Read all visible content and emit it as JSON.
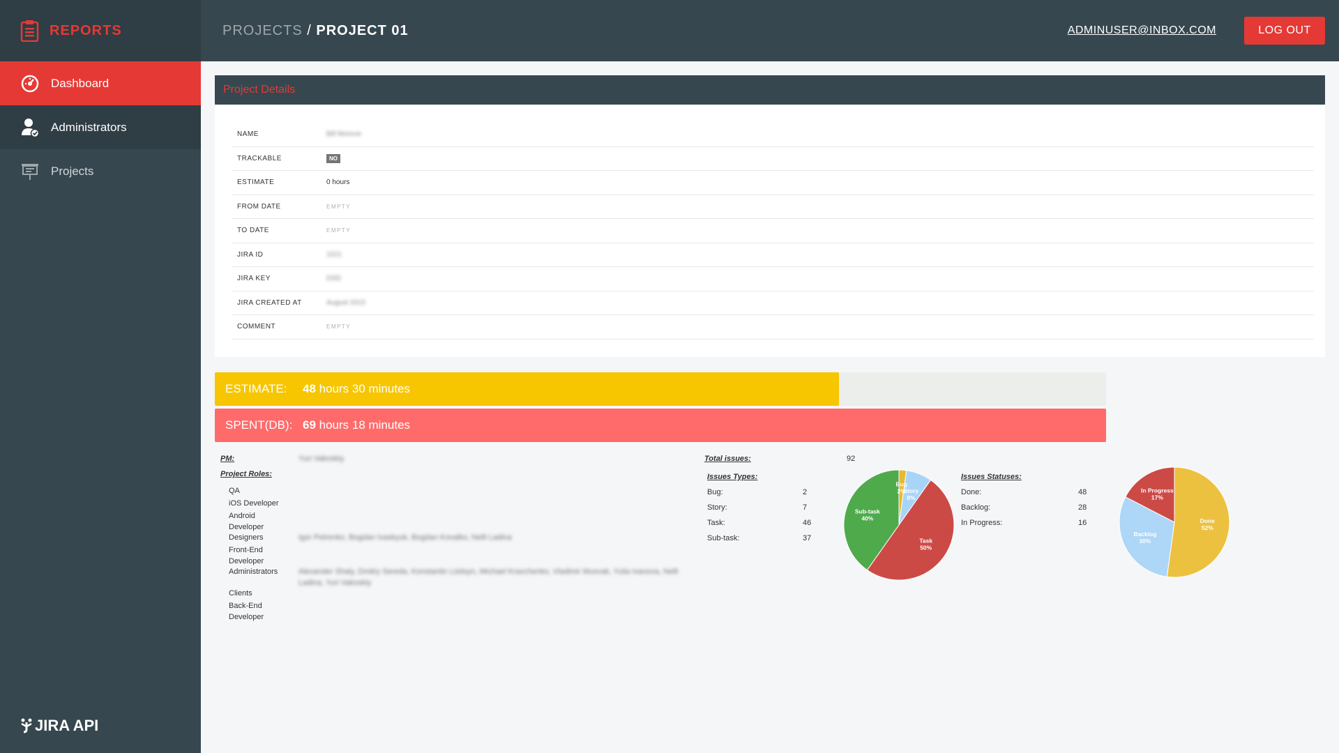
{
  "app": {
    "brand": "REPORTS",
    "footer_logo": "JIRA API"
  },
  "sidebar": {
    "items": [
      {
        "label": "Dashboard",
        "icon": "dashboard-icon"
      },
      {
        "label": "Administrators",
        "icon": "admin-user-icon"
      },
      {
        "label": "Projects",
        "icon": "projects-board-icon"
      }
    ]
  },
  "header": {
    "breadcrumb_parent": "PROJECTS",
    "breadcrumb_sep": " / ",
    "breadcrumb_current": "PROJECT 01",
    "user_email": "ADMINUSER@INBOX.COM",
    "logout_label": "LOG OUT"
  },
  "details": {
    "title": "Project Details",
    "rows": [
      {
        "label": "NAME",
        "value": "Bill Monroe",
        "blurred": true
      },
      {
        "label": "TRACKABLE",
        "value": "NO",
        "badge": true
      },
      {
        "label": "ESTIMATE",
        "value": "0 hours"
      },
      {
        "label": "FROM DATE",
        "value": "EMPTY",
        "empty": true
      },
      {
        "label": "TO DATE",
        "value": "EMPTY",
        "empty": true
      },
      {
        "label": "JIRA ID",
        "value": "1021",
        "blurred": true
      },
      {
        "label": "JIRA KEY",
        "value": "DSD",
        "blurred": true
      },
      {
        "label": "JIRA CREATED AT",
        "value": "August 2015",
        "blurred": true
      },
      {
        "label": "COMMENT",
        "value": "EMPTY",
        "empty": true
      }
    ]
  },
  "progress": {
    "estimate": {
      "label": "ESTIMATE:",
      "hours": "48",
      "rest": " hours 30 minutes",
      "fraction": 0.7
    },
    "spent": {
      "label": "SPENT(DB):",
      "hours": "69",
      "rest": " hours 18 minutes",
      "fraction": 1.0
    }
  },
  "team": {
    "pm_label": "PM:",
    "pm_value": "Yuri Vakoskiy",
    "roles_label": "Project Roles:",
    "roles": [
      {
        "name": "QA",
        "members": ""
      },
      {
        "name": "iOS Developer",
        "members": ""
      },
      {
        "name": "Android Developer",
        "members": ""
      },
      {
        "name": "Designers",
        "members": "Igor Petrenko, Bogdan Ivaskyuk, Bogdan Kovalko, Nelli Ladina"
      },
      {
        "name": "Front-End Developer",
        "members": ""
      },
      {
        "name": "Administrators",
        "members": "Alexander Shaly, Dmitry Sereda, Konstantin Lisitsyn, Michael Kravchenko, Vladimir Musvak, Yulia Ivanova, Nelli Ladina, Yuri Vakoskiy"
      },
      {
        "name": "Clients",
        "members": ""
      },
      {
        "name": "Back-End Developer",
        "members": ""
      }
    ]
  },
  "issues": {
    "total_label": "Total issues:",
    "total": "92",
    "types_label": "Issues Types:",
    "types": [
      {
        "name": "Bug:",
        "count": "2"
      },
      {
        "name": "Story:",
        "count": "7"
      },
      {
        "name": "Task:",
        "count": "46"
      },
      {
        "name": "Sub-task:",
        "count": "37"
      }
    ],
    "statuses_label": "Issues Statuses:",
    "statuses": [
      {
        "name": "Done:",
        "count": "48"
      },
      {
        "name": "Backlog:",
        "count": "28"
      },
      {
        "name": "In Progress:",
        "count": "16"
      }
    ]
  },
  "chart_data": [
    {
      "type": "pie",
      "title": "",
      "categories": [
        "Bug",
        "Story",
        "Task",
        "Sub-task"
      ],
      "values": [
        2,
        7,
        46,
        37
      ],
      "labels": [
        "Bug\n2%",
        "Story\n8%",
        "Task\n50%",
        "Sub-task\n40%"
      ],
      "colors": [
        "#e8b931",
        "#a8d5f7",
        "#cc4a46",
        "#4faa4c"
      ]
    },
    {
      "type": "pie",
      "title": "",
      "categories": [
        "Done",
        "Backlog",
        "In Progress"
      ],
      "values": [
        48,
        28,
        16
      ],
      "labels": [
        "Done\n52%",
        "Backlog\n30%",
        "In Progress\n17%"
      ],
      "colors": [
        "#ecc140",
        "#aed6f6",
        "#cc4a46"
      ]
    }
  ],
  "colors": {
    "accent": "#e53935",
    "sidebar": "#37474f",
    "estimate": "#f7c600",
    "spent": "#ff6b6b"
  }
}
